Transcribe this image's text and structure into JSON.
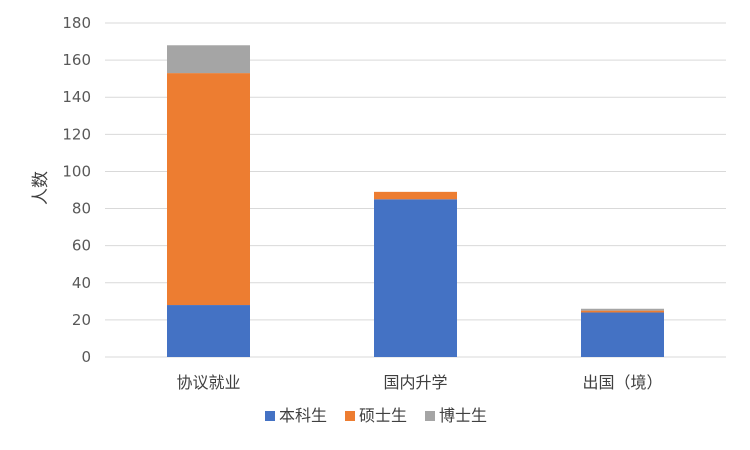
{
  "chart_data": {
    "type": "bar",
    "stacked": true,
    "categories": [
      "协议就业",
      "国内升学",
      "出国（境）"
    ],
    "series": [
      {
        "name": "本科生",
        "color": "#4472C4",
        "values": [
          28,
          85,
          24
        ]
      },
      {
        "name": "硕士生",
        "color": "#ED7D31",
        "values": [
          125,
          4,
          1
        ]
      },
      {
        "name": "博士生",
        "color": "#A5A5A5",
        "values": [
          15,
          0,
          1
        ]
      }
    ],
    "ylabel": "人数",
    "ylim": [
      0,
      180
    ],
    "yticks": [
      0,
      20,
      40,
      60,
      80,
      100,
      120,
      140,
      160,
      180
    ],
    "grid": true,
    "legend": "bottom"
  }
}
